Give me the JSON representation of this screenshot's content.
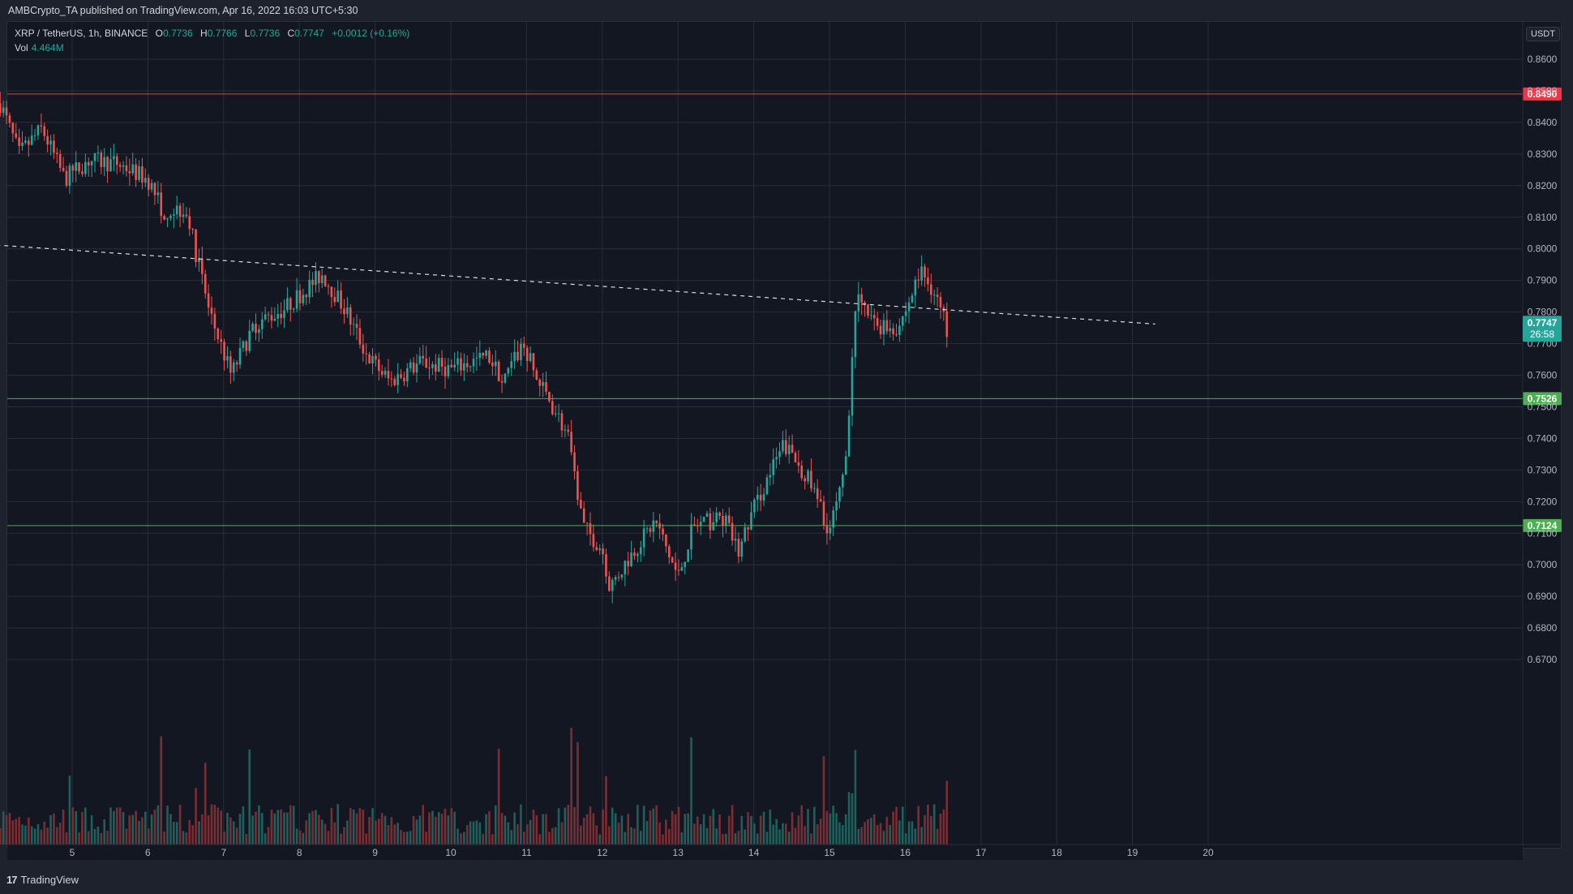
{
  "header": {
    "published": "AMBCrypto_TA published on TradingView.com, Apr 16, 2022 16:03 UTC+5:30"
  },
  "legend": {
    "symbol": "XRP / TetherUS, 1h, BINANCE",
    "o_label": "O",
    "o": "0.7736",
    "h_label": "H",
    "h": "0.7766",
    "l_label": "L",
    "l": "0.7736",
    "c_label": "C",
    "c": "0.7747",
    "change": "+0.0012 (+0.16%)",
    "vol_label": "Vol",
    "vol": "4.464M"
  },
  "currency_badge": "USDT",
  "footer": {
    "brand": "TradingView",
    "logo": "17"
  },
  "colors": {
    "bg": "#131722",
    "grid": "#2a2e39",
    "up": "#26a69a",
    "down": "#ef5350",
    "vol_up": "#1f5f5c",
    "vol_down": "#7a2e33",
    "resistance": "#f23645",
    "support": "#4caf50",
    "trendline": "#ffffff",
    "axis_text": "#b2b5be"
  },
  "chart_data": {
    "type": "candlestick",
    "title": "XRP / TetherUS, 1h, BINANCE",
    "xlabel": "",
    "ylabel": "USDT",
    "x_ticks": [
      "5",
      "6",
      "7",
      "8",
      "9",
      "10",
      "11",
      "12",
      "13",
      "14",
      "15",
      "16",
      "17",
      "18",
      "19",
      "20"
    ],
    "y_ticks": [
      "0.8600",
      "0.8500",
      "0.8400",
      "0.8300",
      "0.8200",
      "0.8100",
      "0.8000",
      "0.7900",
      "0.7800",
      "0.7700",
      "0.7600",
      "0.7500",
      "0.7400",
      "0.7300",
      "0.7200",
      "0.7100",
      "0.7000",
      "0.6900",
      "0.6800",
      "0.6700"
    ],
    "ylim": [
      0.664,
      0.8735
    ],
    "grid": true,
    "horizontal_levels": [
      {
        "label": "0.8490",
        "value": 0.849,
        "color": "#f23645",
        "role": "resistance"
      },
      {
        "label": "0.7526",
        "value": 0.7526,
        "color": "#4caf50",
        "role": "support"
      },
      {
        "label": "0.7124",
        "value": 0.7124,
        "color": "#4caf50",
        "role": "support"
      }
    ],
    "trendline": {
      "style": "dashed",
      "from": {
        "day": 4.05,
        "price": 0.8012
      },
      "to": {
        "day": 19.3,
        "price": 0.7762
      }
    },
    "last_price": {
      "label": "0.7747",
      "countdown": "26:58",
      "value": 0.7747
    },
    "price_path_daily_anchors": [
      {
        "day": 4.05,
        "price": 0.846
      },
      {
        "day": 4.3,
        "price": 0.83
      },
      {
        "day": 4.6,
        "price": 0.838
      },
      {
        "day": 4.9,
        "price": 0.822
      },
      {
        "day": 5.2,
        "price": 0.828
      },
      {
        "day": 5.6,
        "price": 0.827
      },
      {
        "day": 6.0,
        "price": 0.822
      },
      {
        "day": 6.2,
        "price": 0.812
      },
      {
        "day": 6.5,
        "price": 0.813
      },
      {
        "day": 6.8,
        "price": 0.781
      },
      {
        "day": 7.1,
        "price": 0.76
      },
      {
        "day": 7.4,
        "price": 0.776
      },
      {
        "day": 7.8,
        "price": 0.781
      },
      {
        "day": 8.3,
        "price": 0.792
      },
      {
        "day": 8.6,
        "price": 0.781
      },
      {
        "day": 8.9,
        "price": 0.766
      },
      {
        "day": 9.2,
        "price": 0.758
      },
      {
        "day": 9.6,
        "price": 0.764
      },
      {
        "day": 10.0,
        "price": 0.762
      },
      {
        "day": 10.5,
        "price": 0.766
      },
      {
        "day": 10.7,
        "price": 0.758
      },
      {
        "day": 10.95,
        "price": 0.77
      },
      {
        "day": 11.15,
        "price": 0.758
      },
      {
        "day": 11.4,
        "price": 0.748
      },
      {
        "day": 11.55,
        "price": 0.74
      },
      {
        "day": 11.75,
        "price": 0.712
      },
      {
        "day": 12.0,
        "price": 0.705
      },
      {
        "day": 12.1,
        "price": 0.693
      },
      {
        "day": 12.4,
        "price": 0.704
      },
      {
        "day": 12.7,
        "price": 0.714
      },
      {
        "day": 13.0,
        "price": 0.696
      },
      {
        "day": 13.2,
        "price": 0.712
      },
      {
        "day": 13.6,
        "price": 0.715
      },
      {
        "day": 13.8,
        "price": 0.704
      },
      {
        "day": 14.0,
        "price": 0.718
      },
      {
        "day": 14.4,
        "price": 0.738
      },
      {
        "day": 14.7,
        "price": 0.728
      },
      {
        "day": 15.0,
        "price": 0.711
      },
      {
        "day": 15.2,
        "price": 0.728
      },
      {
        "day": 15.35,
        "price": 0.784
      },
      {
        "day": 15.6,
        "price": 0.776
      },
      {
        "day": 15.9,
        "price": 0.775
      },
      {
        "day": 16.0,
        "price": 0.78
      },
      {
        "day": 16.2,
        "price": 0.793
      },
      {
        "day": 16.4,
        "price": 0.786
      },
      {
        "day": 16.55,
        "price": 0.7747
      }
    ]
  }
}
